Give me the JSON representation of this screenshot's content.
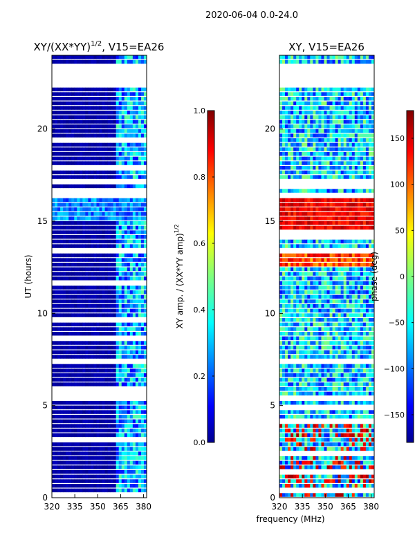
{
  "page_title": "2020-06-04 0.0-24.0",
  "colors": {
    "map_low": "#00008f",
    "map_mid": "#7fff7f",
    "map_high": "#7f0000",
    "background": "#ffffff"
  },
  "chart_data": [
    {
      "type": "heatmap",
      "title_main": "XY/(XX*YY)",
      "title_exp": "1/2",
      "title_suffix": ", V15=EA26",
      "xlabel": "",
      "ylabel": "UT (hours)",
      "xlim": [
        320,
        382
      ],
      "ylim": [
        0,
        24
      ],
      "x_ticks": [
        "320",
        "335",
        "350",
        "365",
        "380"
      ],
      "x_tick_values": [
        320,
        335,
        350,
        365,
        380
      ],
      "y_ticks": [
        "0",
        "5",
        "10",
        "15",
        "20"
      ],
      "y_tick_values": [
        0,
        5,
        10,
        15,
        20
      ],
      "quantity": "normalized XY amplitude",
      "colorbar": {
        "label_main": "XY amp. / (XX*YY amp)",
        "label_exp": "1/2",
        "range": [
          0.0,
          1.0
        ],
        "ticks": [
          "0.0",
          "0.2",
          "0.4",
          "0.6",
          "0.8",
          "1.0"
        ],
        "tick_values": [
          0.0,
          0.2,
          0.4,
          0.6,
          0.8,
          1.0
        ]
      },
      "features": [
        {
          "desc": "background",
          "value": 0.02
        },
        {
          "desc": "channels 362-382 MHz",
          "value": 0.3
        },
        {
          "desc": "15.0-16.3 h band",
          "value": 0.25
        }
      ],
      "gaps_hours": [
        [
          22.3,
          23.5
        ],
        [
          17.1,
          17.3
        ],
        [
          16.2,
          16.4
        ],
        [
          7.2,
          7.4
        ]
      ]
    },
    {
      "type": "heatmap",
      "title_main": "XY, V15=EA26",
      "xlabel": "frequency (MHz)",
      "ylabel": "",
      "xlim": [
        320,
        382
      ],
      "ylim": [
        0,
        24
      ],
      "x_ticks": [
        "320",
        "335",
        "350",
        "365",
        "380"
      ],
      "x_tick_values": [
        320,
        335,
        350,
        365,
        380
      ],
      "y_ticks": [
        "0",
        "5",
        "10",
        "15",
        "20"
      ],
      "y_tick_values": [
        0,
        5,
        10,
        15,
        20
      ],
      "quantity": "XY phase (deg)",
      "colorbar": {
        "label_main": "phase (deg)",
        "range": [
          -180,
          180
        ],
        "ticks": [
          "−150",
          "−100",
          "−50",
          "0",
          "50",
          "100",
          "150"
        ],
        "tick_values": [
          -150,
          -100,
          -50,
          0,
          50,
          100,
          150
        ]
      },
      "features": [
        {
          "desc": "14.3-16.2 h",
          "value": 150
        },
        {
          "desc": "12.5-13.5 h",
          "value": 130
        },
        {
          "desc": "background",
          "value": -60
        }
      ],
      "gaps_hours": [
        [
          22.3,
          23.5
        ],
        [
          17.1,
          17.3
        ],
        [
          16.2,
          16.4
        ],
        [
          7.2,
          7.4
        ]
      ]
    }
  ]
}
